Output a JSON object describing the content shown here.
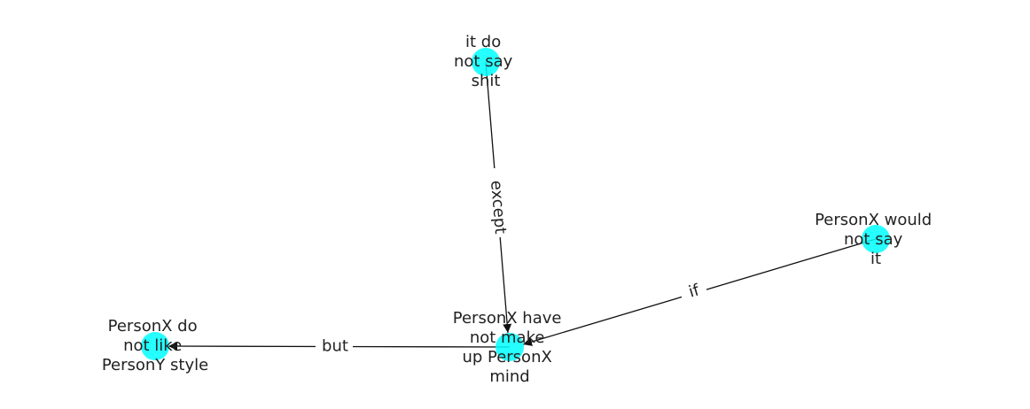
{
  "diagram": {
    "nodes": [
      {
        "id": "n_it_do_not_say",
        "lines": [
          "it do",
          "not say",
          "shit"
        ]
      },
      {
        "id": "n_would_not_say",
        "lines": [
          "PersonX would",
          "not say",
          "it"
        ]
      },
      {
        "id": "n_have_not_make",
        "lines": [
          "PersonX have",
          "not make",
          "up PersonX",
          "mind"
        ]
      },
      {
        "id": "n_do_not_like",
        "lines": [
          "PersonX do",
          "not like",
          "PersonY style"
        ]
      }
    ],
    "edges": [
      {
        "from": "n_it_do_not_say",
        "to": "n_have_not_make",
        "label": "except"
      },
      {
        "from": "n_would_not_say",
        "to": "n_have_not_make",
        "label": "if"
      },
      {
        "from": "n_have_not_make",
        "to": "n_do_not_like",
        "label": "but"
      }
    ],
    "node_color": "#00ffff",
    "edge_color": "#111111"
  }
}
